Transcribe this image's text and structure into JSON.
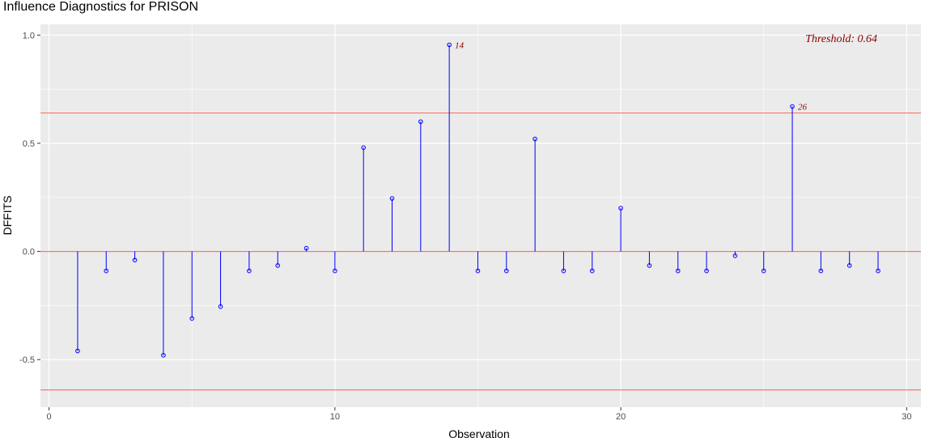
{
  "chart_data": {
    "type": "scatter",
    "title": "Influence Diagnostics for PRISON",
    "xlabel": "Observation",
    "ylabel": "DFFITS",
    "xlim": [
      -0.3,
      30.5
    ],
    "ylim": [
      -0.72,
      1.05
    ],
    "xticks": [
      0,
      10,
      20,
      30
    ],
    "yticks": [
      -0.5,
      0.0,
      0.5,
      1.0
    ],
    "xtick_labels": [
      "0",
      "10",
      "20",
      "30"
    ],
    "ytick_labels": [
      "-0.5",
      "0.0",
      "0.5",
      "1.0"
    ],
    "threshold": 0.64,
    "threshold_label": "Threshold: 0.64",
    "grid": true,
    "x": [
      1,
      2,
      3,
      4,
      5,
      6,
      7,
      8,
      9,
      10,
      11,
      12,
      13,
      14,
      15,
      16,
      17,
      18,
      19,
      20,
      21,
      22,
      23,
      24,
      25,
      26,
      27,
      28,
      29
    ],
    "y": [
      -0.46,
      -0.09,
      -0.04,
      -0.48,
      -0.31,
      -0.255,
      -0.09,
      -0.065,
      0.015,
      -0.09,
      0.48,
      0.245,
      0.6,
      0.955,
      -0.09,
      -0.09,
      0.52,
      -0.09,
      -0.09,
      0.2,
      -0.065,
      -0.09,
      -0.09,
      -0.02,
      -0.09,
      0.67,
      -0.09,
      -0.065,
      -0.09
    ],
    "labeled_points": [
      {
        "x": 14,
        "label": "14"
      },
      {
        "x": 26,
        "label": "26"
      }
    ],
    "colors": {
      "stem": "#0000ff",
      "reference_line": "#f8766d",
      "panel": "#ebebeb",
      "label": "#8b0000"
    }
  }
}
